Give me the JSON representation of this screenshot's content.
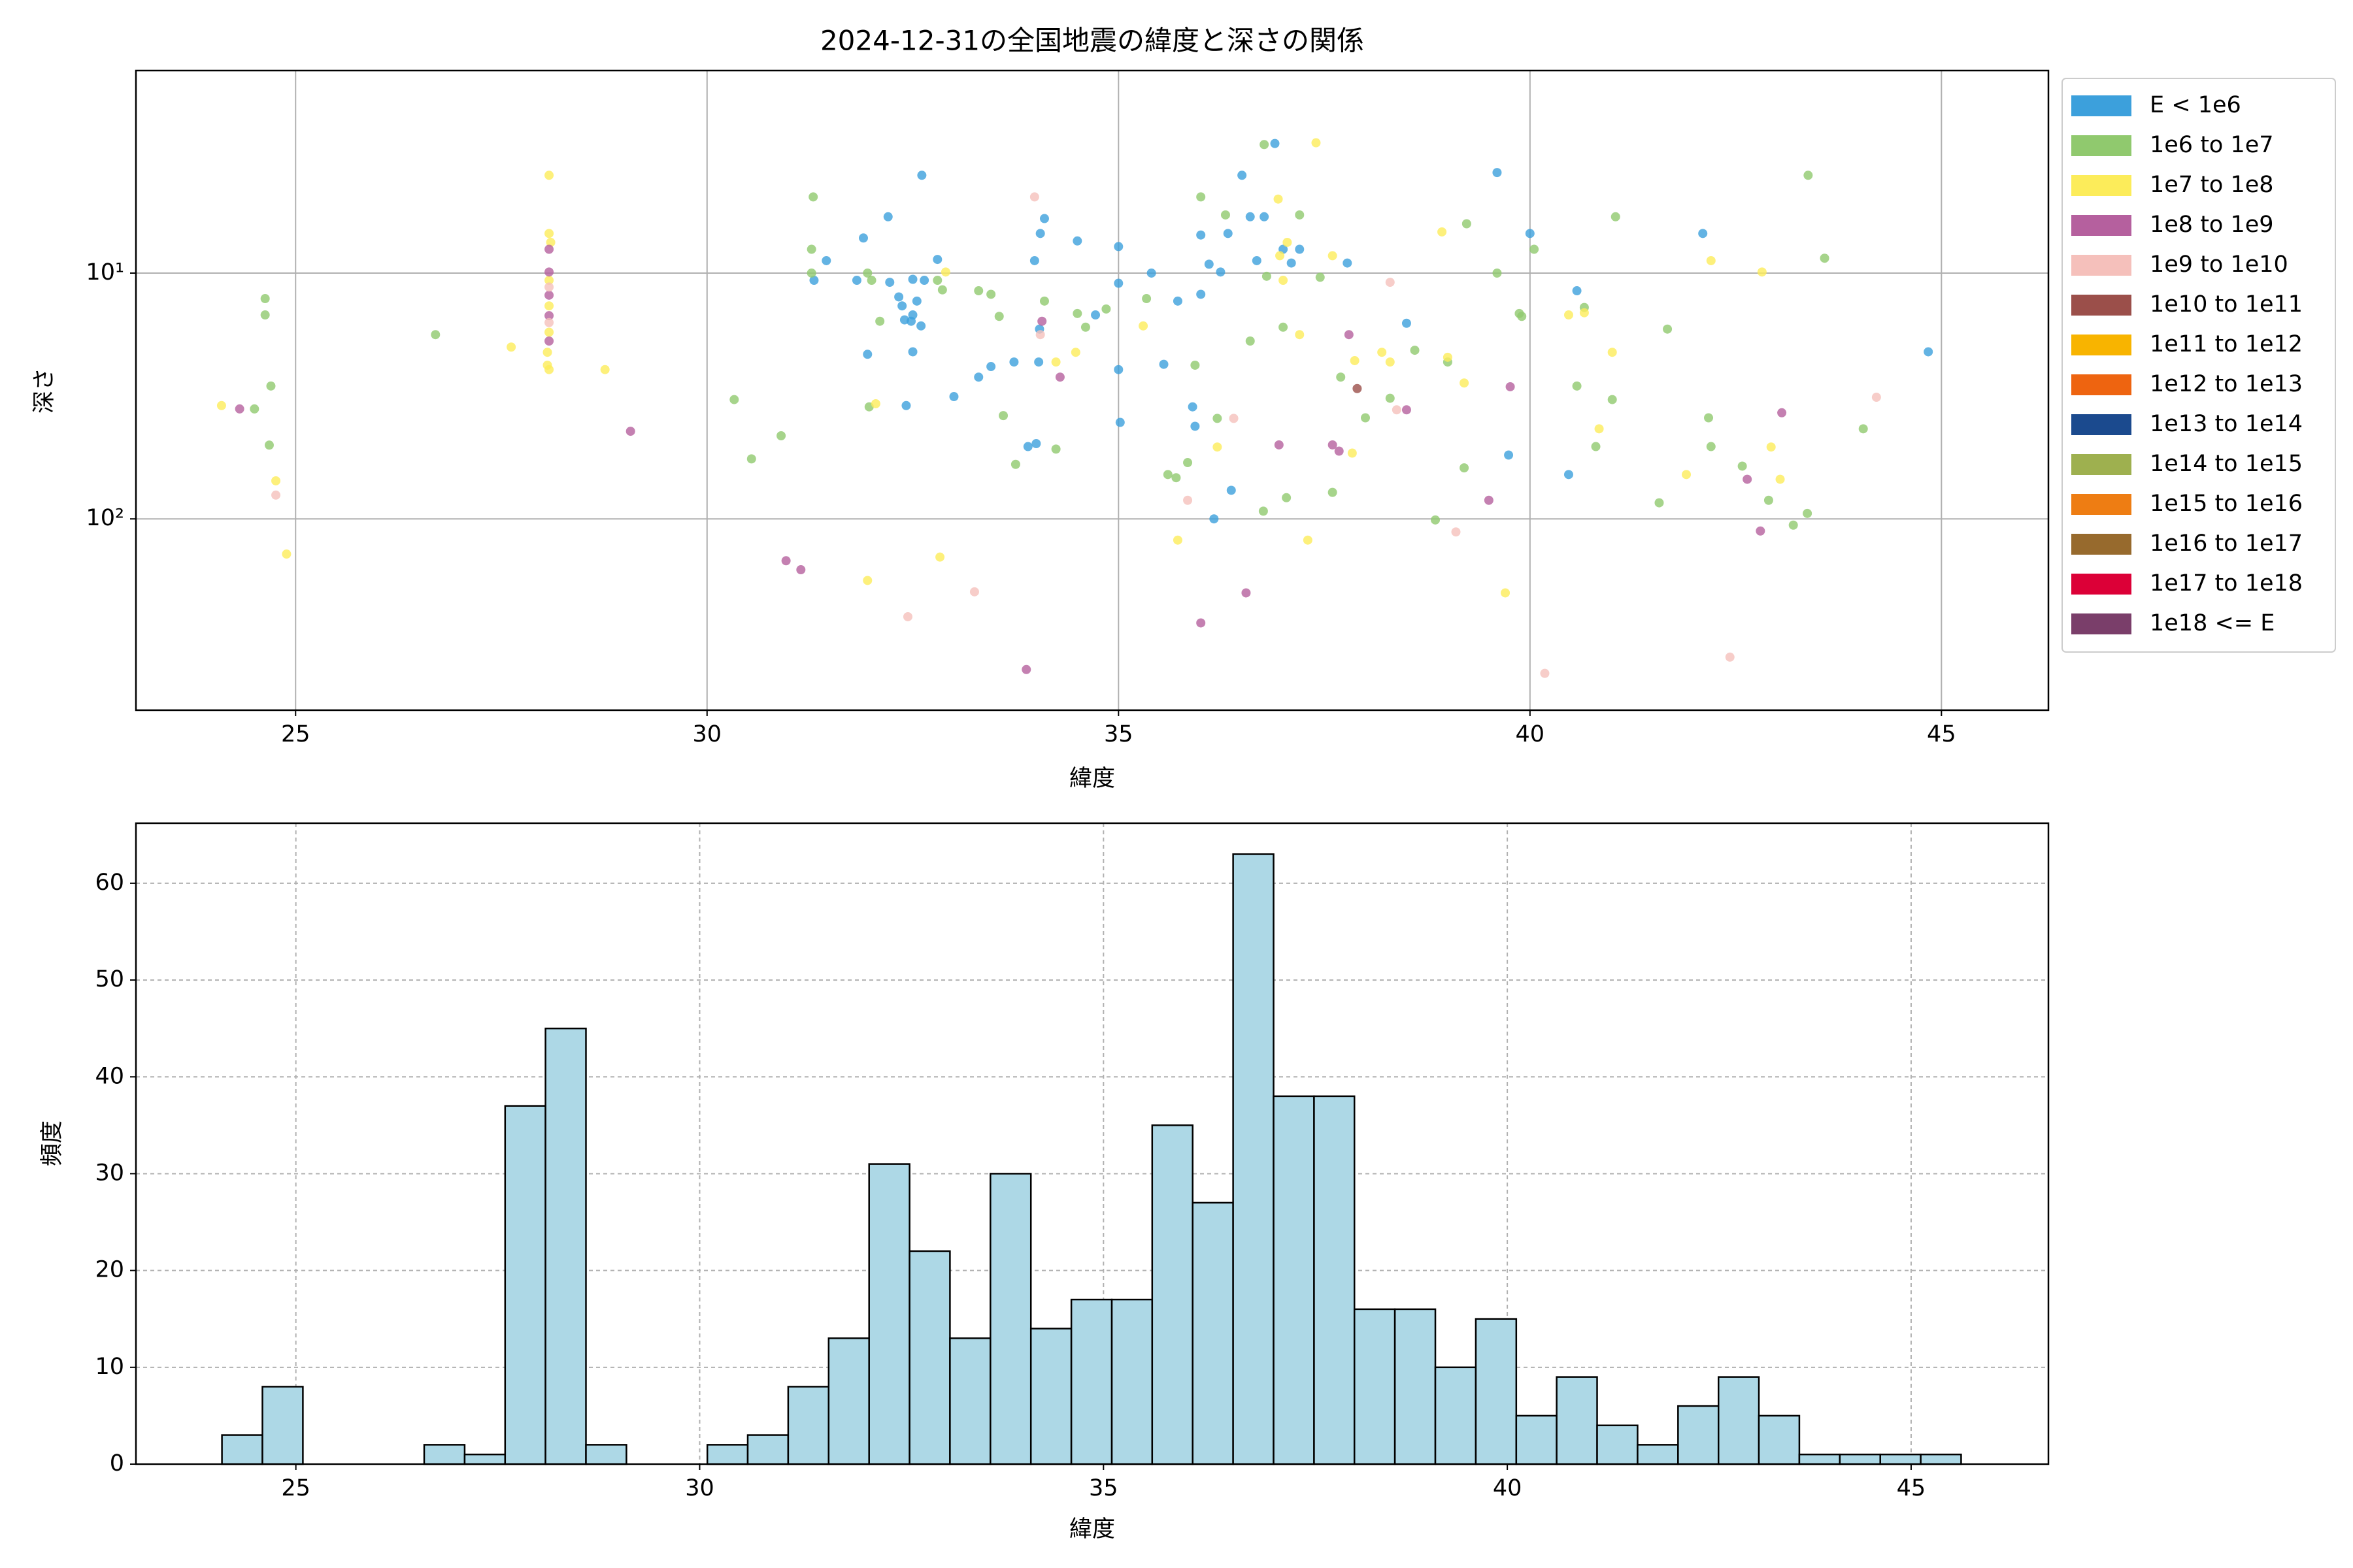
{
  "chart_data": [
    {
      "type": "scatter",
      "title": "2024-12-31の全国地震の緯度と深さの関係",
      "xlabel": "緯度",
      "ylabel": "深さ",
      "yscale": "log",
      "y_inverted": true,
      "grid": true,
      "legend": "outside-right",
      "xlim": [
        23.06,
        46.3
      ],
      "ylim": [
        1.5,
        600
      ],
      "xticks": [
        25,
        30,
        35,
        40,
        45
      ],
      "yticks": [
        {
          "value": 10,
          "label": "10¹"
        },
        {
          "value": 100,
          "label": "10²"
        }
      ],
      "series": [
        {
          "name": "E < 1e6",
          "color": "#3ca0dc",
          "x": [
            32.61,
            32.2,
            31.9,
            31.82,
            32.22,
            32.33,
            32.37,
            32.4,
            32.48,
            32.5,
            32.55,
            32.64,
            32.5,
            32.42,
            32.5,
            32.8,
            33.0,
            33.3,
            33.45,
            33.73,
            33.9,
            34.0,
            34.03,
            34.04,
            33.98,
            34.05,
            34.1,
            34.5,
            34.72,
            35.0,
            35.0,
            35.02,
            35.0,
            35.4,
            35.55,
            35.72,
            35.9,
            35.93,
            36.0,
            36.1,
            36.0,
            36.16,
            36.24,
            36.33,
            36.37,
            36.5,
            36.6,
            36.68,
            36.77,
            36.9,
            37.0,
            37.1,
            37.2,
            37.78,
            38.5,
            39.6,
            39.74,
            40.0,
            40.47,
            40.57,
            42.1,
            44.84,
            32.6,
            31.95,
            31.45,
            31.3
          ],
          "values": [
            4.0,
            5.9,
            7.2,
            10.7,
            10.9,
            12.5,
            13.6,
            15.5,
            15.7,
            14.8,
            13,
            10.7,
            20.9,
            34.6,
            10.6,
            8.8,
            31.8,
            26.5,
            24,
            23,
            50.8,
            49.4,
            23,
            16.9,
            8.9,
            6.9,
            6.0,
            7.4,
            14.8,
            7.8,
            24.7,
            40.5,
            11,
            10,
            23.5,
            13,
            35,
            42,
            7,
            9.2,
            12.2,
            100,
            9.9,
            6.9,
            76.5,
            4.0,
            5.9,
            8.9,
            5.9,
            2.97,
            8.0,
            9.1,
            8.0,
            9.1,
            16,
            3.9,
            55,
            6.9,
            66,
            11.8,
            6.9,
            20.9,
            16.4,
            21.4,
            8.9,
            10.7
          ]
        },
        {
          "name": "1e6 to 1e7",
          "color": "#90c96e",
          "x": [
            24.63,
            24.63,
            24.7,
            24.5,
            24.68,
            26.7,
            30.33,
            30.54,
            30.9,
            31.29,
            31.27,
            31.27,
            31.95,
            31.97,
            32.0,
            32.1,
            32.8,
            32.86,
            33.3,
            33.45,
            33.55,
            33.6,
            33.75,
            34.1,
            34.24,
            34.5,
            34.6,
            34.85,
            35.34,
            35.6,
            35.7,
            35.84,
            35.93,
            36.0,
            36.2,
            36.3,
            36.6,
            36.77,
            36.76,
            37.04,
            36.8,
            37.0,
            37.2,
            37.45,
            37.6,
            37.7,
            38.0,
            38.3,
            38.6,
            38.85,
            39.0,
            39.23,
            39.2,
            39.6,
            39.87,
            40.05,
            40.57,
            40.66,
            40.8,
            41.04,
            41.0,
            41.57,
            41.67,
            42.17,
            42.2,
            42.58,
            42.9,
            43.2,
            43.37,
            43.38,
            43.58,
            44.05,
            39.9
          ],
          "values": [
            12.7,
            14.8,
            28.8,
            35.7,
            50.1,
            17.8,
            32.7,
            57,
            45.9,
            4.9,
            8.0,
            10,
            10,
            35,
            10.7,
            15.7,
            10.7,
            11.7,
            11.8,
            12.2,
            15,
            38,
            60,
            13,
            52,
            14.6,
            16.6,
            14,
            12.7,
            66,
            68,
            59,
            23.7,
            4.9,
            39,
            5.8,
            18.9,
            3.0,
            93,
            82,
            10.3,
            16.6,
            5.8,
            10.4,
            78,
            26.5,
            38.8,
            32.3,
            20.6,
            101,
            23,
            6.3,
            62,
            10,
            14.6,
            8.0,
            28.8,
            13.8,
            50.8,
            5.9,
            32.7,
            86,
            16.9,
            38.8,
            50.8,
            61,
            84,
            106,
            95,
            4.0,
            8.7,
            43,
            15
          ]
        },
        {
          "name": "1e7 to 1e8",
          "color": "#fcec5a",
          "x": [
            24.1,
            24.76,
            24.89,
            27.62,
            28.08,
            28.08,
            28.08,
            28.08,
            28.08,
            28.08,
            28.76,
            28.1,
            31.95,
            32.05,
            32.83,
            32.9,
            34.24,
            34.48,
            35.3,
            35.72,
            36.2,
            36.94,
            36.96,
            37.0,
            37.05,
            37.2,
            37.3,
            37.4,
            37.6,
            37.84,
            37.87,
            38.2,
            38.3,
            38.93,
            39.0,
            39.2,
            39.7,
            40.47,
            40.84,
            41.0,
            41.9,
            42.2,
            42.82,
            42.93,
            43.04,
            40.66,
            28.06,
            28.06
          ],
          "values": [
            34.6,
            70,
            139,
            20,
            4.0,
            6.9,
            10.7,
            13.6,
            17.4,
            24.7,
            24.7,
            7.5,
            178,
            34,
            143,
            9.9,
            23,
            21,
            16.4,
            122,
            51,
            5.0,
            8.5,
            10.7,
            7.5,
            17.8,
            122,
            2.95,
            8.5,
            54,
            22.7,
            21,
            23,
            6.8,
            22,
            28,
            200,
            14.8,
            43,
            21,
            66,
            8.9,
            9.9,
            51,
            69,
            14.5,
            23.7,
            21
          ]
        },
        {
          "name": "1e8 to 1e9",
          "color": "#b5609e",
          "x": [
            24.32,
            28.08,
            28.08,
            28.08,
            28.08,
            28.08,
            29.07,
            30.96,
            31.14,
            33.88,
            34.07,
            34.29,
            36.0,
            36.55,
            36.95,
            37.6,
            37.68,
            37.8,
            38.5,
            39.5,
            39.76,
            42.64,
            42.8,
            43.06
          ],
          "values": [
            35.7,
            8.0,
            12.3,
            14.9,
            18.9,
            9.9,
            44,
            148,
            161,
            410,
            15.7,
            26.5,
            265,
            200,
            50,
            50,
            53,
            17.8,
            36,
            84,
            29,
            69,
            112,
            37
          ]
        },
        {
          "name": "1e9 to 1e10",
          "color": "#f5c0bb",
          "x": [
            24.76,
            28.08,
            28.08,
            32.44,
            33.25,
            33.98,
            34.05,
            35.84,
            36.4,
            38.3,
            39.1,
            40.18,
            42.43,
            44.21,
            38.38
          ],
          "values": [
            80,
            11.4,
            15.9,
            250,
            198,
            4.9,
            17.8,
            84,
            39,
            10.9,
            113,
            425,
            365,
            32,
            36
          ]
        },
        {
          "name": "1e10 to 1e11",
          "color": "#9b4f4a",
          "x": [
            37.9
          ],
          "values": [
            29.5
          ]
        },
        {
          "name": "1e11 to 1e12",
          "color": "#f8b400",
          "x": [],
          "values": []
        },
        {
          "name": "1e12 to 1e13",
          "color": "#ee6410",
          "x": [],
          "values": []
        },
        {
          "name": "1e13 to 1e14",
          "color": "#1b4a8e",
          "x": [],
          "values": []
        },
        {
          "name": "1e14 to 1e15",
          "color": "#9eb04f",
          "x": [],
          "values": []
        },
        {
          "name": "1e15 to 1e16",
          "color": "#ee7d13",
          "x": [],
          "values": []
        },
        {
          "name": "1e16 to 1e17",
          "color": "#976a2d",
          "x": [],
          "values": []
        },
        {
          "name": "1e17 to 1e18",
          "color": "#dc0037",
          "x": [],
          "values": []
        },
        {
          "name": "1e18 <= E",
          "color": "#7a3e6a",
          "x": [],
          "values": []
        }
      ]
    },
    {
      "type": "histogram",
      "xlabel": "緯度",
      "ylabel": "頻度",
      "color": "#add8e6",
      "edgecolor": "#000000",
      "grid": "dashed",
      "xlim": [
        23.02,
        46.7
      ],
      "ylim": [
        0,
        66.2
      ],
      "xticks": [
        25,
        30,
        35,
        40,
        45
      ],
      "yticks": [
        0,
        10,
        20,
        30,
        40,
        50,
        60
      ],
      "bins": [
        24.085,
        24.586,
        25.087,
        25.587,
        26.088,
        26.589,
        27.09,
        27.591,
        28.091,
        28.592,
        29.093,
        29.594,
        30.095,
        30.595,
        31.096,
        31.597,
        32.098,
        32.599,
        33.099,
        33.6,
        34.101,
        34.602,
        35.103,
        35.603,
        36.104,
        36.605,
        37.106,
        37.607,
        38.107,
        38.608,
        39.109,
        39.61,
        40.111,
        40.611,
        41.112,
        41.613,
        42.114,
        42.615,
        43.115,
        43.616,
        44.117,
        44.618,
        45.119,
        45.619
      ],
      "values": [
        3,
        8,
        0,
        0,
        0,
        2,
        1,
        37,
        45,
        2,
        0,
        0,
        2,
        3,
        8,
        13,
        31,
        22,
        13,
        30,
        14,
        17,
        17,
        35,
        27,
        63,
        38,
        38,
        16,
        16,
        10,
        15,
        5,
        9,
        4,
        2,
        6,
        9,
        5,
        1,
        1,
        1,
        1
      ]
    }
  ]
}
